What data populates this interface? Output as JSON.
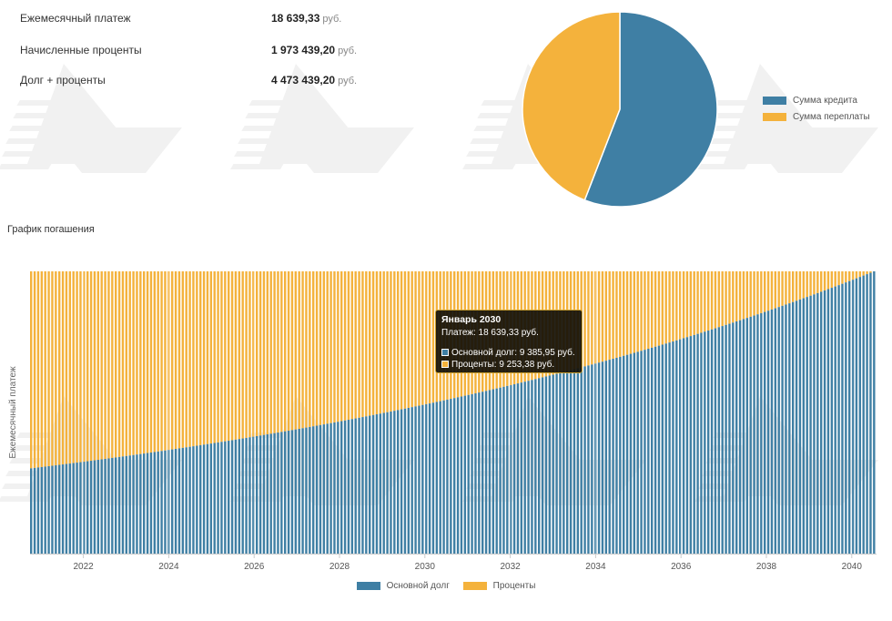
{
  "summary": {
    "unit": "руб.",
    "monthly_label": "Ежемесячный платеж",
    "monthly_value": "18 639,33",
    "interest_label": "Начисленные проценты",
    "interest_value": "1 973 439,20",
    "total_label": "Долг + проценты",
    "total_value": "4 473 439,20"
  },
  "section_title": "График погашения",
  "colors": {
    "principal": "#3f7fa4",
    "interest": "#f4b23c",
    "watermark": "#9a9a9a"
  },
  "chart_data": [
    {
      "type": "pie",
      "slices": [
        {
          "label": "Сумма кредита",
          "value": 2500000
        },
        {
          "label": "Сумма переплаты",
          "value": 1973439.2
        }
      ],
      "legend_position": "right"
    },
    {
      "type": "bar",
      "stacked": true,
      "ylabel": "Ежемесячный платеж",
      "x_start": 2020.75,
      "x_end": 2040.58,
      "months": 240,
      "x_ticks": [
        2022,
        2024,
        2026,
        2028,
        2030,
        2032,
        2034,
        2036,
        2038,
        2040
      ],
      "grid": true,
      "legend_position": "bottom",
      "series": [
        {
          "name": "Основной долг",
          "start": 5630,
          "end": 18639.33
        },
        {
          "name": "Проценты",
          "start": 13009,
          "end": 0
        }
      ],
      "total_per_month": 18639.33,
      "tooltip": {
        "title": "Январь 2030",
        "payment_label": "Платеж:",
        "payment_value": "18 639,33 руб.",
        "principal_label": "Основной долг:",
        "principal_value": "9 385,95  руб.",
        "interest_label": "Проценты:",
        "interest_value": "9 253,38  руб."
      }
    }
  ]
}
